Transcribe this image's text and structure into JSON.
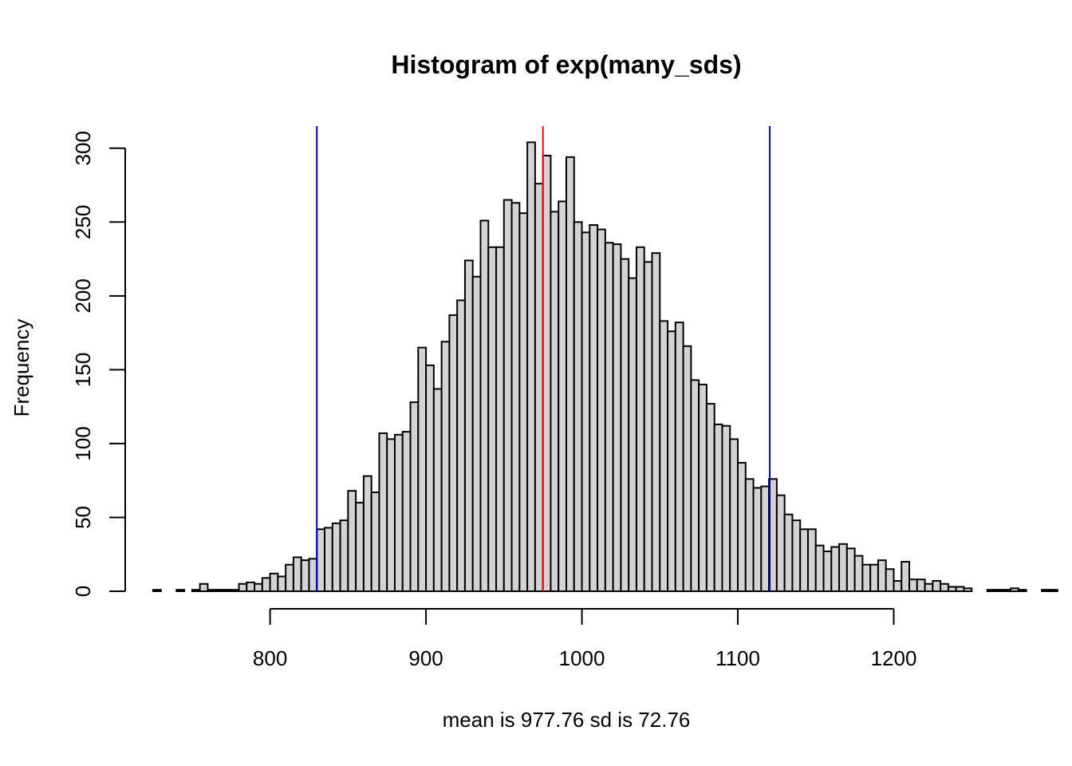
{
  "chart_data": {
    "type": "histogram",
    "title": "Histogram of exp(many_sds)",
    "xlabel": "mean is  977.76  sd is  72.76",
    "ylabel": "Frequency",
    "xlim": [
      725,
      1255
    ],
    "ylim": [
      0,
      315
    ],
    "bin_width": 5,
    "x_start": 725,
    "x_ticks": [
      800,
      900,
      1000,
      1100,
      1200
    ],
    "y_ticks": [
      0,
      50,
      100,
      150,
      200,
      250,
      300
    ],
    "counts": [
      1,
      0,
      0,
      1,
      0,
      1,
      5,
      1,
      1,
      1,
      1,
      5,
      6,
      5,
      9,
      12,
      10,
      18,
      23,
      21,
      22,
      42,
      43,
      46,
      48,
      68,
      60,
      78,
      67,
      107,
      103,
      106,
      108,
      128,
      165,
      153,
      137,
      169,
      187,
      197,
      224,
      213,
      251,
      233,
      233,
      265,
      263,
      256,
      304,
      276,
      295,
      257,
      264,
      294,
      250,
      243,
      248,
      245,
      236,
      235,
      225,
      212,
      233,
      223,
      229,
      183,
      176,
      182,
      166,
      143,
      140,
      127,
      113,
      112,
      103,
      87,
      76,
      70,
      71,
      76,
      65,
      52,
      48,
      42,
      42,
      31,
      27,
      30,
      32,
      29,
      24,
      18,
      18,
      21,
      15,
      7,
      20,
      8,
      8,
      5,
      7,
      5,
      3,
      3,
      2,
      0,
      0,
      1,
      1,
      1,
      2,
      1,
      0,
      0,
      1,
      1,
      0,
      0,
      1,
      1,
      1,
      1
    ],
    "bar_fill": "#d3d3d3",
    "bar_stroke": "#000000",
    "vlines": [
      {
        "x": 975.0,
        "color": "#ff0000"
      },
      {
        "x": 830.0,
        "color": "#0000cd"
      },
      {
        "x": 1120.5,
        "color": "#0000cd"
      }
    ],
    "grid": false
  }
}
